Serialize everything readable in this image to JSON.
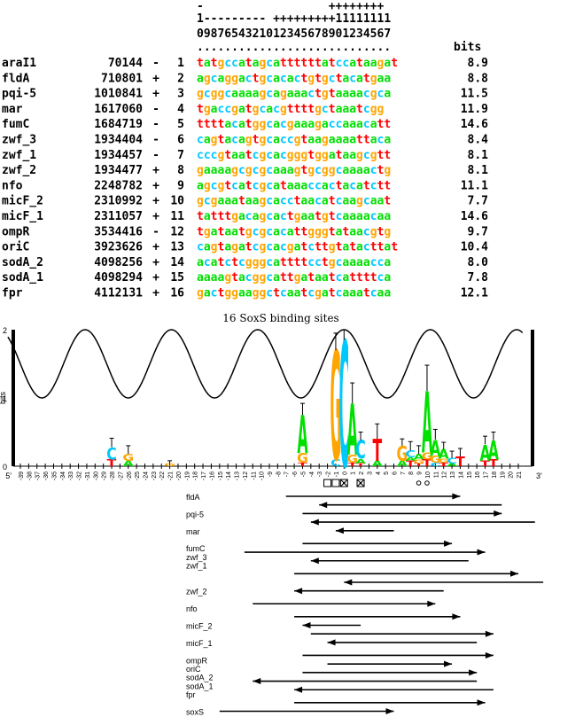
{
  "alignment": {
    "header_sign_row": "-                  ++++++++",
    "header_tens_row": "1--------- +++++++++11111111",
    "header_units_row": "0987654321012345678901234567",
    "header_dots_row": "............................",
    "bits_header": "bits",
    "rows": [
      {
        "name": "araI1",
        "coord": "70144",
        "strand": "-",
        "index": "1",
        "seq": "tatgccatagcattttttatccataagat",
        "bits": "8.9"
      },
      {
        "name": "fldA",
        "coord": "710801",
        "strand": "+",
        "index": "2",
        "seq": "agcaggactgcacactgtgctacatgaa",
        "bits": "8.8"
      },
      {
        "name": "pqi-5",
        "coord": "1010841",
        "strand": "+",
        "index": "3",
        "seq": "gcggcaaaagcagaaactgtaaaacgca",
        "bits": "11.5"
      },
      {
        "name": "mar",
        "coord": "1617060",
        "strand": "-",
        "index": "4",
        "seq": "tgaccgatgcacgttttgctaaatcgg",
        "bits": "11.9"
      },
      {
        "name": "fumC",
        "coord": "1684719",
        "strand": "-",
        "index": "5",
        "seq": "ttttacatggcacgaaagaccaaacatt",
        "bits": "14.6"
      },
      {
        "name": "zwf_3",
        "coord": "1934404",
        "strand": "-",
        "index": "6",
        "seq": "cagtacagtgcaccgtaagaaaattaca",
        "bits": "8.4"
      },
      {
        "name": "zwf_1",
        "coord": "1934457",
        "strand": "-",
        "index": "7",
        "seq": "cccgtaatcgcacgggtggataagcgtt",
        "bits": "8.1"
      },
      {
        "name": "zwf_2",
        "coord": "1934477",
        "strand": "+",
        "index": "8",
        "seq": "gaaaagcgcgcaaagtgcggcaaaactg",
        "bits": "8.1"
      },
      {
        "name": "nfo",
        "coord": "2248782",
        "strand": "+",
        "index": "9",
        "seq": "agcgtcatcgcataaaccactacatctt",
        "bits": "11.1"
      },
      {
        "name": "micF_2",
        "coord": "2310992",
        "strand": "+",
        "index": "10",
        "seq": "gcgaaataagcacctaacatcaagcaat",
        "bits": "7.7"
      },
      {
        "name": "micF_1",
        "coord": "2311057",
        "strand": "+",
        "index": "11",
        "seq": "tatttgacagcactgaatgtcaaaacaa",
        "bits": "14.6"
      },
      {
        "name": "ompR",
        "coord": "3534416",
        "strand": "-",
        "index": "12",
        "seq": "tgataatgcgcacattgggtataacgtg",
        "bits": "9.7"
      },
      {
        "name": "oriC",
        "coord": "3923626",
        "strand": "+",
        "index": "13",
        "seq": "cagtagatcgcacgatcttgtatacttat",
        "bits": "10.4"
      },
      {
        "name": "sodA_2",
        "coord": "4098256",
        "strand": "+",
        "index": "14",
        "seq": "acatctcgggcattttcctgcaaaacca",
        "bits": "8.0"
      },
      {
        "name": "sodA_1",
        "coord": "4098294",
        "strand": "+",
        "index": "15",
        "seq": "aaaagtacggcattgataatcattttca",
        "bits": "7.8"
      },
      {
        "name": "fpr",
        "coord": "4112131",
        "strand": "+",
        "index": "16",
        "seq": "gactggaaggctcaatcgatcaaatcaa",
        "bits": "12.1"
      }
    ]
  },
  "logo": {
    "title": "16 SoxS binding sites",
    "y_axis_label": "bits",
    "y_ticks": [
      "0",
      "1",
      "2"
    ],
    "x_start_label": "5'",
    "x_end_label": "3'",
    "positions": [
      "-39",
      "-38",
      "-37",
      "-36",
      "-35",
      "-34",
      "-33",
      "-32",
      "-31",
      "-30",
      "-29",
      "-28",
      "-27",
      "-26",
      "-25",
      "-24",
      "-23",
      "-22",
      "-21",
      "-20",
      "-19",
      "-18",
      "-17",
      "-16",
      "-15",
      "-14",
      "-13",
      "-12",
      "-11",
      "-10",
      "-9",
      "-8",
      "-7",
      "-6",
      "-5",
      "-4",
      "-3",
      "-2",
      "-1",
      "0",
      "1",
      "2",
      "3",
      "4",
      "5",
      "6",
      "7",
      "8",
      "9",
      "10",
      "11",
      "12",
      "13",
      "14",
      "15",
      "16",
      "17",
      "18",
      "19",
      "20",
      "21"
    ],
    "stacks": [
      {
        "pos": -28,
        "letters": [
          {
            "b": "T",
            "h": 0.1
          },
          {
            "b": "C",
            "h": 0.18
          }
        ],
        "err": 0.13
      },
      {
        "pos": -26,
        "letters": [
          {
            "b": "A",
            "h": 0.08
          },
          {
            "b": "G",
            "h": 0.1
          }
        ],
        "err": 0.12
      },
      {
        "pos": -21,
        "letters": [
          {
            "b": "G",
            "h": 0.04
          }
        ],
        "err": 0.04
      },
      {
        "pos": -5,
        "letters": [
          {
            "b": "T",
            "h": 0.05
          },
          {
            "b": "G",
            "h": 0.14
          },
          {
            "b": "A",
            "h": 0.56
          }
        ],
        "err": 0.17
      },
      {
        "pos": -1,
        "letters": [
          {
            "b": "C",
            "h": 0.1
          },
          {
            "b": "G",
            "h": 1.6
          }
        ],
        "err": 0.25
      },
      {
        "pos": 0,
        "letters": [
          {
            "b": "C",
            "h": 1.85
          }
        ],
        "err": 0.15
      },
      {
        "pos": 1,
        "letters": [
          {
            "b": "T",
            "h": 0.05
          },
          {
            "b": "G",
            "h": 0.12
          },
          {
            "b": "A",
            "h": 0.75
          }
        ],
        "err": 0.3
      },
      {
        "pos": 2,
        "letters": [
          {
            "b": "T",
            "h": 0.04
          },
          {
            "b": "A",
            "h": 0.07
          },
          {
            "b": "C",
            "h": 0.27
          }
        ],
        "err": 0.12
      },
      {
        "pos": 4,
        "letters": [
          {
            "b": "A",
            "h": 0.08
          },
          {
            "b": "T",
            "h": 0.32
          }
        ],
        "err": 0.22
      },
      {
        "pos": 7,
        "letters": [
          {
            "b": "A",
            "h": 0.08
          },
          {
            "b": "G",
            "h": 0.22
          }
        ],
        "err": 0.1
      },
      {
        "pos": 8,
        "letters": [
          {
            "b": "T",
            "h": 0.08
          },
          {
            "b": "A",
            "h": 0.05
          },
          {
            "b": "C",
            "h": 0.1
          }
        ],
        "err": 0.13
      },
      {
        "pos": 9,
        "letters": [
          {
            "b": "T",
            "h": 0.04
          },
          {
            "b": "G",
            "h": 0.06
          },
          {
            "b": "A",
            "h": 0.08
          }
        ],
        "err": 0.12
      },
      {
        "pos": 10,
        "letters": [
          {
            "b": "T",
            "h": 0.1
          },
          {
            "b": "G",
            "h": 0.1
          },
          {
            "b": "A",
            "h": 0.9
          }
        ],
        "err": 0.38
      },
      {
        "pos": 11,
        "letters": [
          {
            "b": "C",
            "h": 0.05
          },
          {
            "b": "G",
            "h": 0.1
          },
          {
            "b": "A",
            "h": 0.24
          }
        ],
        "err": 0.15
      },
      {
        "pos": 12,
        "letters": [
          {
            "b": "T",
            "h": 0.05
          },
          {
            "b": "G",
            "h": 0.06
          },
          {
            "b": "A",
            "h": 0.14
          }
        ],
        "err": 0.1
      },
      {
        "pos": 13,
        "letters": [
          {
            "b": "A",
            "h": 0.04
          },
          {
            "b": "C",
            "h": 0.08
          }
        ],
        "err": 0.1
      },
      {
        "pos": 14,
        "letters": [
          {
            "b": "T",
            "h": 0.14
          }
        ],
        "err": 0.12
      },
      {
        "pos": 17,
        "letters": [
          {
            "b": "T",
            "h": 0.08
          },
          {
            "b": "A",
            "h": 0.24
          }
        ],
        "err": 0.12
      },
      {
        "pos": 18,
        "letters": [
          {
            "b": "T",
            "h": 0.1
          },
          {
            "b": "A",
            "h": 0.28
          }
        ],
        "err": 0.12
      }
    ],
    "markers": [
      {
        "pos": -2,
        "glyph": "box"
      },
      {
        "pos": -1,
        "glyph": "box"
      },
      {
        "pos": 0,
        "glyph": "boxdot"
      },
      {
        "pos": 2,
        "glyph": "boxdot"
      },
      {
        "pos": 9,
        "glyph": "circle"
      },
      {
        "pos": 10,
        "glyph": "circle"
      }
    ]
  },
  "arrow_map": {
    "labels": [
      {
        "text": "fldA",
        "row": 0
      },
      {
        "text": "pqi-5",
        "row": 2
      },
      {
        "text": "mar",
        "row": 4
      },
      {
        "text": "fumC",
        "row": 6
      },
      {
        "text": "zwf_3",
        "row": 7
      },
      {
        "text": "zwf_1",
        "row": 8
      },
      {
        "text": "zwf_2",
        "row": 11
      },
      {
        "text": "nfo",
        "row": 13
      },
      {
        "text": "micF_2",
        "row": 15
      },
      {
        "text": "micF_1",
        "row": 17
      },
      {
        "text": "ompR",
        "row": 19
      },
      {
        "text": "oriC",
        "row": 20
      },
      {
        "text": "sodA_2",
        "row": 21
      },
      {
        "text": "sodA_1",
        "row": 22
      },
      {
        "text": "fpr",
        "row": 23
      },
      {
        "text": "soxS",
        "row": 25
      }
    ],
    "arrows": [
      {
        "row": 0,
        "from": -7,
        "to": 14
      },
      {
        "row": 1,
        "from": 19,
        "to": -3
      },
      {
        "row": 2,
        "from": -5,
        "to": 19
      },
      {
        "row": 3,
        "from": 23,
        "to": -4
      },
      {
        "row": 4,
        "from": 6,
        "to": -1
      },
      {
        "row": 5.5,
        "from": -5,
        "to": 13
      },
      {
        "row": 6.5,
        "from": -12,
        "to": 17
      },
      {
        "row": 7.5,
        "from": 15,
        "to": -4
      },
      {
        "row": 9,
        "from": -6,
        "to": 21
      },
      {
        "row": 10,
        "from": 24,
        "to": 0
      },
      {
        "row": 11,
        "from": 12,
        "to": -6
      },
      {
        "row": 12.5,
        "from": -11,
        "to": 11
      },
      {
        "row": 14,
        "from": -6,
        "to": 14
      },
      {
        "row": 15,
        "from": 2,
        "to": -5
      },
      {
        "row": 16,
        "from": -4,
        "to": 18
      },
      {
        "row": 17,
        "from": 16,
        "to": -2
      },
      {
        "row": 18.5,
        "from": -5,
        "to": 18
      },
      {
        "row": 19.5,
        "from": -2,
        "to": 13
      },
      {
        "row": 20.5,
        "from": -5,
        "to": 16
      },
      {
        "row": 21.5,
        "from": 16,
        "to": -11
      },
      {
        "row": 22.5,
        "from": 18,
        "to": -6
      },
      {
        "row": 24,
        "from": -6,
        "to": 17
      },
      {
        "row": 25,
        "from": -15,
        "to": 6
      }
    ]
  },
  "colors": {
    "A": "#00e000",
    "C": "#00c8ff",
    "G": "#ffa500",
    "T": "#ff0000",
    "text": "#000000",
    "background": "#ffffff"
  }
}
